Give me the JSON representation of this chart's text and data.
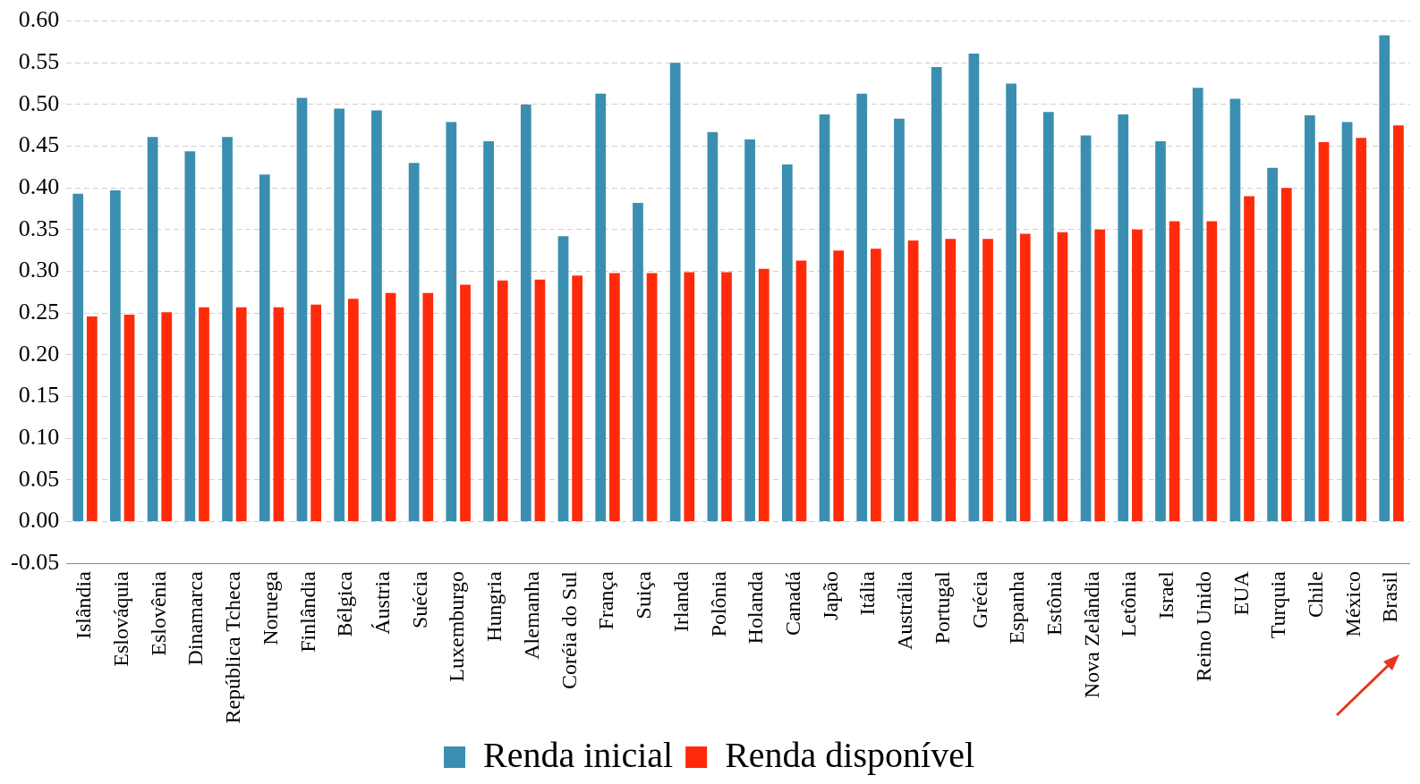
{
  "chart_data": {
    "type": "bar",
    "categories": [
      "Islândia",
      "Eslováquia",
      "Eslovênia",
      "Dinamarca",
      "República Tcheca",
      "Noruega",
      "Finlândia",
      "Bélgica",
      "Áustria",
      "Suécia",
      "Luxemburgo",
      "Hungria",
      "Alemanha",
      "Coréia do Sul",
      "França",
      "Suiça",
      "Irlanda",
      "Polônia",
      "Holanda",
      "Canadá",
      "Japão",
      "Itália",
      "Austrália",
      "Portugal",
      "Grécia",
      "Espanha",
      "Estônia",
      "Nova Zelândia",
      "Letônia",
      "Israel",
      "Reino Unido",
      "EUA",
      "Turquia",
      "Chile",
      "México",
      "Brasil"
    ],
    "series": [
      {
        "name": "Renda inicial",
        "color": "#3a8fb0",
        "values": [
          0.393,
          0.397,
          0.461,
          0.444,
          0.461,
          0.416,
          0.508,
          0.495,
          0.493,
          0.43,
          0.479,
          0.456,
          0.5,
          0.342,
          0.513,
          0.382,
          0.55,
          0.467,
          0.458,
          0.428,
          0.488,
          0.513,
          0.483,
          0.545,
          0.561,
          0.525,
          0.491,
          0.463,
          0.488,
          0.456,
          0.52,
          0.507,
          0.424,
          0.487,
          0.479,
          0.583
        ]
      },
      {
        "name": "Renda disponível",
        "color": "#ff2a0a",
        "values": [
          0.246,
          0.248,
          0.251,
          0.257,
          0.257,
          0.257,
          0.26,
          0.267,
          0.274,
          0.274,
          0.284,
          0.289,
          0.29,
          0.295,
          0.298,
          0.298,
          0.299,
          0.299,
          0.303,
          0.313,
          0.325,
          0.327,
          0.337,
          0.339,
          0.339,
          0.345,
          0.347,
          0.35,
          0.35,
          0.36,
          0.36,
          0.39,
          0.4,
          0.455,
          0.46,
          0.475
        ]
      }
    ],
    "ylim": [
      -0.05,
      0.6
    ],
    "yticks": [
      {
        "value": -0.05,
        "label": "-0.05"
      },
      {
        "value": 0,
        "label": "0.00"
      },
      {
        "value": 0.05,
        "label": "0.05"
      },
      {
        "value": 0.1,
        "label": "0.10"
      },
      {
        "value": 0.15,
        "label": "0.15"
      },
      {
        "value": 0.2,
        "label": "0.20"
      },
      {
        "value": 0.25,
        "label": "0.25"
      },
      {
        "value": 0.3,
        "label": "0.30"
      },
      {
        "value": 0.35,
        "label": "0.35"
      },
      {
        "value": 0.4,
        "label": "0.40"
      },
      {
        "value": 0.45,
        "label": "0.45"
      },
      {
        "value": 0.5,
        "label": "0.50"
      },
      {
        "value": 0.55,
        "label": "0.55"
      },
      {
        "value": 0.6,
        "label": "0.60"
      }
    ],
    "grid": "y",
    "legend": "bottom"
  }
}
